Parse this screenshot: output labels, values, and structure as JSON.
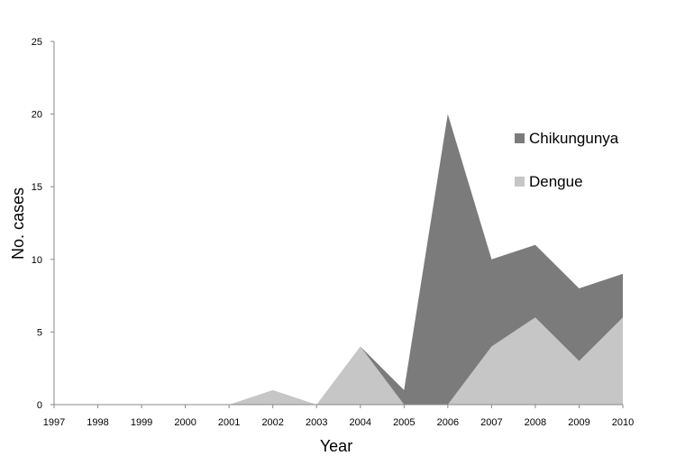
{
  "chart_data": {
    "type": "area",
    "stacked": true,
    "title": "",
    "xlabel": "Year",
    "ylabel": "No. cases",
    "ylim": [
      0,
      25
    ],
    "yticks": [
      0,
      5,
      10,
      15,
      20,
      25
    ],
    "categories": [
      "1997",
      "1998",
      "1999",
      "2000",
      "2001",
      "2002",
      "2003",
      "2004",
      "2005",
      "2006",
      "2007",
      "2008",
      "2009",
      "2010"
    ],
    "series": [
      {
        "name": "Dengue",
        "color": "#c6c6c6",
        "values": [
          0,
          0,
          0,
          0,
          0,
          1,
          0,
          4,
          0,
          0,
          4,
          6,
          3,
          6
        ]
      },
      {
        "name": "Chikungunya",
        "color": "#7b7b7b",
        "values": [
          0,
          0,
          0,
          0,
          0,
          0,
          0,
          0,
          1,
          20,
          6,
          5,
          5,
          3
        ]
      }
    ],
    "legend": [
      "Chikungunya",
      "Dengue"
    ],
    "legend_position": "right",
    "grid": false
  }
}
